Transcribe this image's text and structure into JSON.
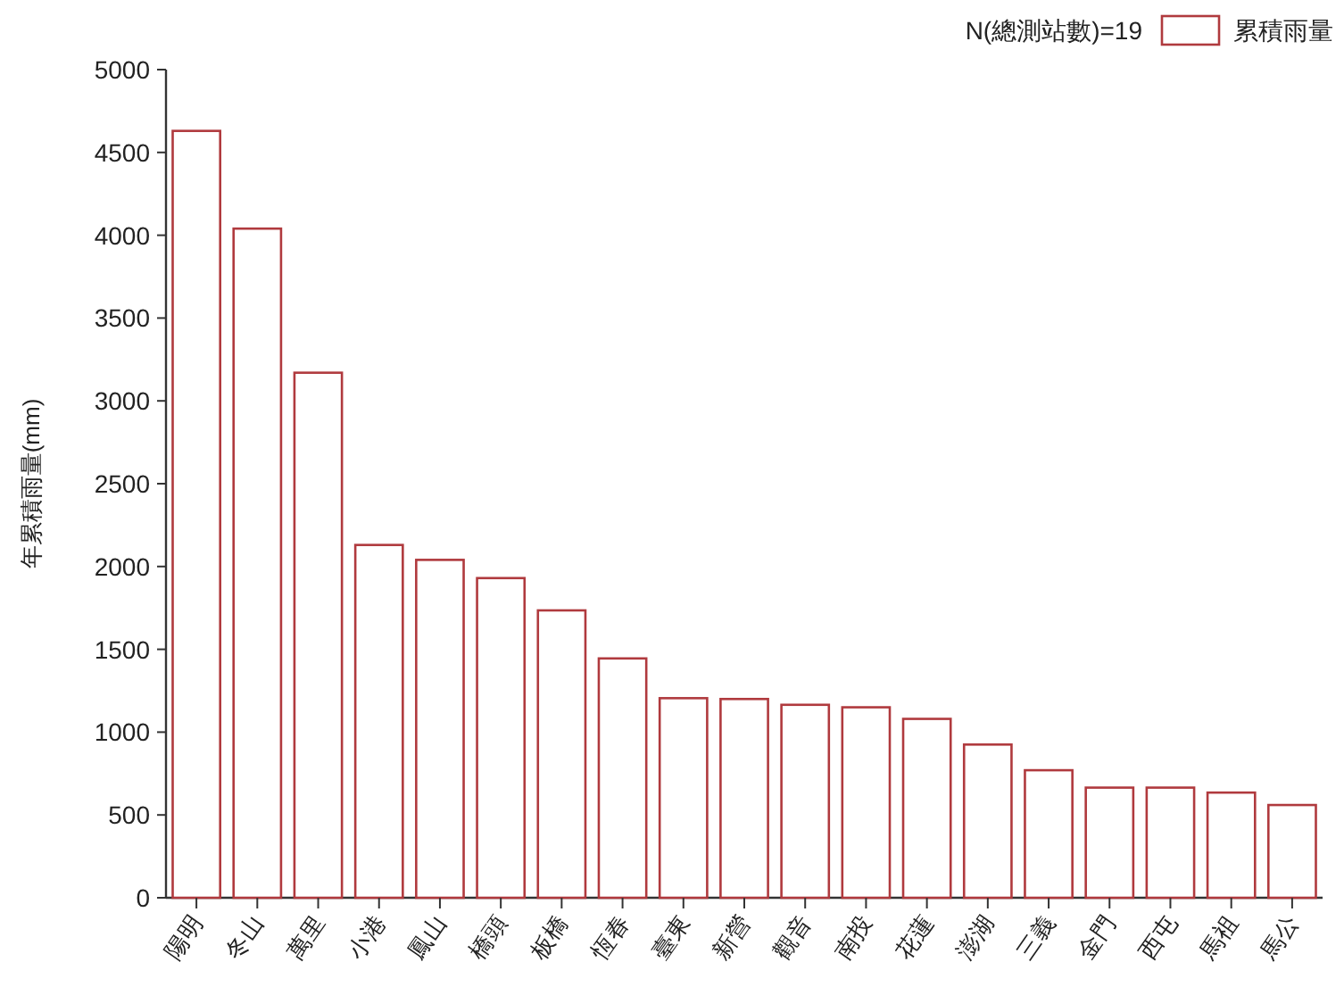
{
  "chart_data": {
    "type": "bar",
    "ylabel": "年累積雨量(mm)",
    "legend_title": "N(總測站數)=19",
    "legend": "top right",
    "grid": false,
    "categories": [
      "陽明",
      "冬山",
      "萬里",
      "小港",
      "鳳山",
      "橋頭",
      "板橋",
      "恆春",
      "臺東",
      "新營",
      "觀音",
      "南投",
      "花蓮",
      "澎湖",
      "三義",
      "金門",
      "西屯",
      "馬祖",
      "馬公"
    ],
    "series": [
      {
        "name": "累積雨量",
        "color": "#b03a3e",
        "values": [
          4630,
          4040,
          3170,
          2130,
          2040,
          1930,
          1735,
          1445,
          1205,
          1200,
          1165,
          1150,
          1080,
          925,
          770,
          665,
          665,
          635,
          560
        ]
      }
    ],
    "ylim": [
      0,
      5000
    ],
    "yticks": [
      0,
      500,
      1000,
      1500,
      2000,
      2500,
      3000,
      3500,
      4000,
      4500,
      5000
    ]
  }
}
